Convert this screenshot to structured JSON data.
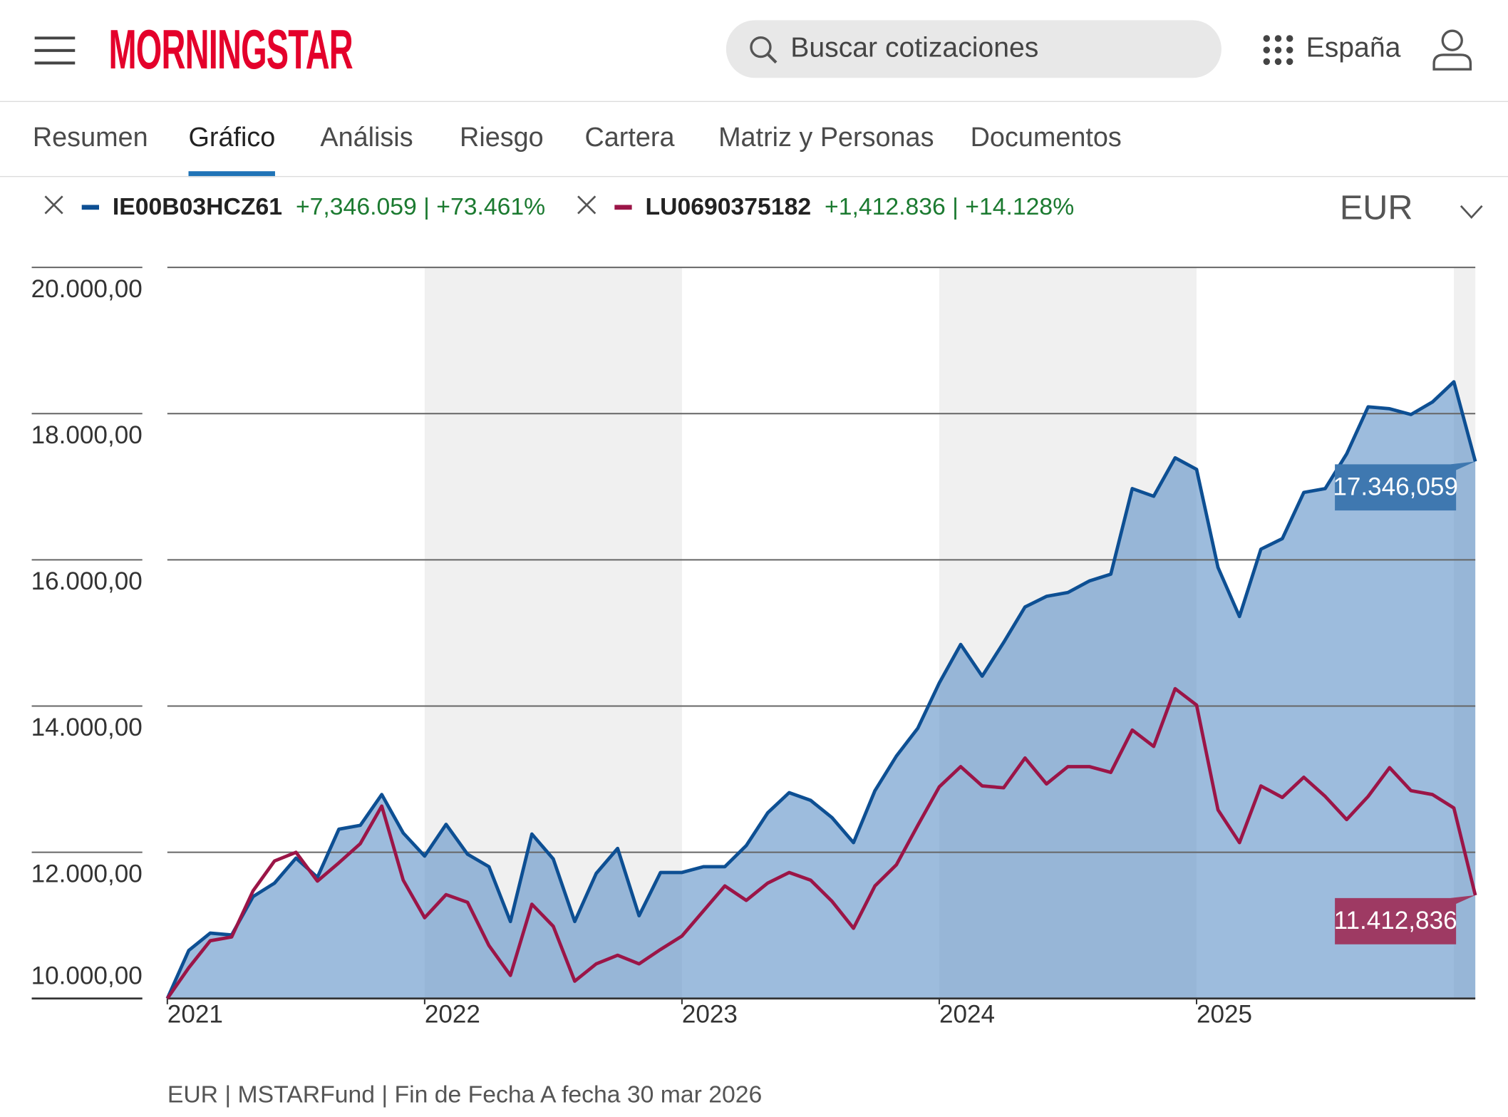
{
  "header": {
    "logo": "MORNINGSTAR",
    "search_placeholder": "Buscar cotizaciones",
    "region": "España"
  },
  "tabs": [
    "Resumen",
    "Gráfico",
    "Análisis",
    "Riesgo",
    "Cartera",
    "Matriz y Personas",
    "Documentos"
  ],
  "active_tab": 1,
  "currency": "EUR",
  "chart_data": {
    "type": "line",
    "x": [
      2021,
      2021.0833,
      2021.1667,
      2021.25,
      2021.3333,
      2021.4167,
      2021.5,
      2021.5833,
      2021.6667,
      2021.75,
      2021.8333,
      2021.9167,
      2022,
      2022.0833,
      2022.1667,
      2022.25,
      2022.3333,
      2022.4167,
      2022.5,
      2022.5833,
      2022.6667,
      2022.75,
      2022.8333,
      2022.9167,
      2023,
      2023.0833,
      2023.1667,
      2023.25,
      2023.3333,
      2023.4167,
      2023.5,
      2023.5833,
      2023.6667,
      2023.75,
      2023.8333,
      2023.9167,
      2024,
      2024.0833,
      2024.1667,
      2024.25,
      2024.3333,
      2024.4167,
      2024.5,
      2024.5833,
      2024.6667,
      2024.75,
      2024.8333,
      2024.9167,
      2025,
      2025.0833,
      2025.1667,
      2025.25,
      2025.3333,
      2025.4167,
      2025.5,
      2025.5833,
      2025.6667,
      2025.75,
      2025.8333,
      2025.9167,
      2026,
      2026.0833
    ],
    "series": [
      {
        "name": "IE00B03HCZ61",
        "color": "#0d4f93",
        "fill": true,
        "change": "+7,346.059 | +73.461%",
        "end_label": "17.346,059",
        "label_color": "#3f78b0",
        "values": [
          10000,
          10658,
          10895,
          10869,
          11395,
          11579,
          11921,
          11658,
          12316,
          12369,
          12790,
          12264,
          11948,
          12382,
          11974,
          11803,
          11053,
          12250,
          11908,
          11053,
          11711,
          12053,
          11132,
          11724,
          11724,
          11803,
          11803,
          12092,
          12540,
          12816,
          12711,
          12474,
          12132,
          12843,
          13316,
          13698,
          14316,
          14843,
          14409,
          14869,
          15356,
          15501,
          15554,
          15711,
          15804,
          16975,
          16870,
          17396,
          17238,
          15896,
          15225,
          16146,
          16290,
          16922,
          16975,
          17449,
          18093,
          18067,
          17988,
          18159,
          18436,
          17346.059
        ]
      },
      {
        "name": "LU0690375182",
        "color": "#9b1547",
        "fill": false,
        "change": "+1,412.836 | +14.128%",
        "end_label": "11.412,836",
        "label_color": "#9e3a63",
        "values": [
          10000,
          10421,
          10790,
          10842,
          11474,
          11882,
          12000,
          11606,
          11856,
          12119,
          12632,
          11619,
          11105,
          11421,
          11316,
          10724,
          10316,
          11290,
          10987,
          10237,
          10474,
          10592,
          10474,
          10671,
          10855,
          11198,
          11540,
          11342,
          11579,
          11724,
          11619,
          11329,
          10961,
          11540,
          11829,
          12369,
          12895,
          13172,
          12908,
          12882,
          13290,
          12935,
          13172,
          13172,
          13093,
          13672,
          13448,
          14238,
          14014,
          12580,
          12132,
          12908,
          12750,
          13027,
          12764,
          12448,
          12764,
          13158,
          12843,
          12790,
          12606,
          11412.836
        ]
      }
    ],
    "xlim": [
      2021,
      2026.0833
    ],
    "xticks": [
      2021,
      2022,
      2023,
      2024,
      2025
    ],
    "ylim": [
      10000,
      20000
    ],
    "yticks": [
      {
        "value": 10000,
        "label": "10.000,00"
      },
      {
        "value": 12000,
        "label": "12.000,00"
      },
      {
        "value": 14000,
        "label": "14.000,00"
      },
      {
        "value": 16000,
        "label": "16.000,00"
      },
      {
        "value": 18000,
        "label": "18.000,00"
      },
      {
        "value": 20000,
        "label": "20.000,00"
      }
    ],
    "grid": true
  },
  "footer": "EUR | MSTARFund | Fin de Fecha A fecha 30 mar 2026"
}
